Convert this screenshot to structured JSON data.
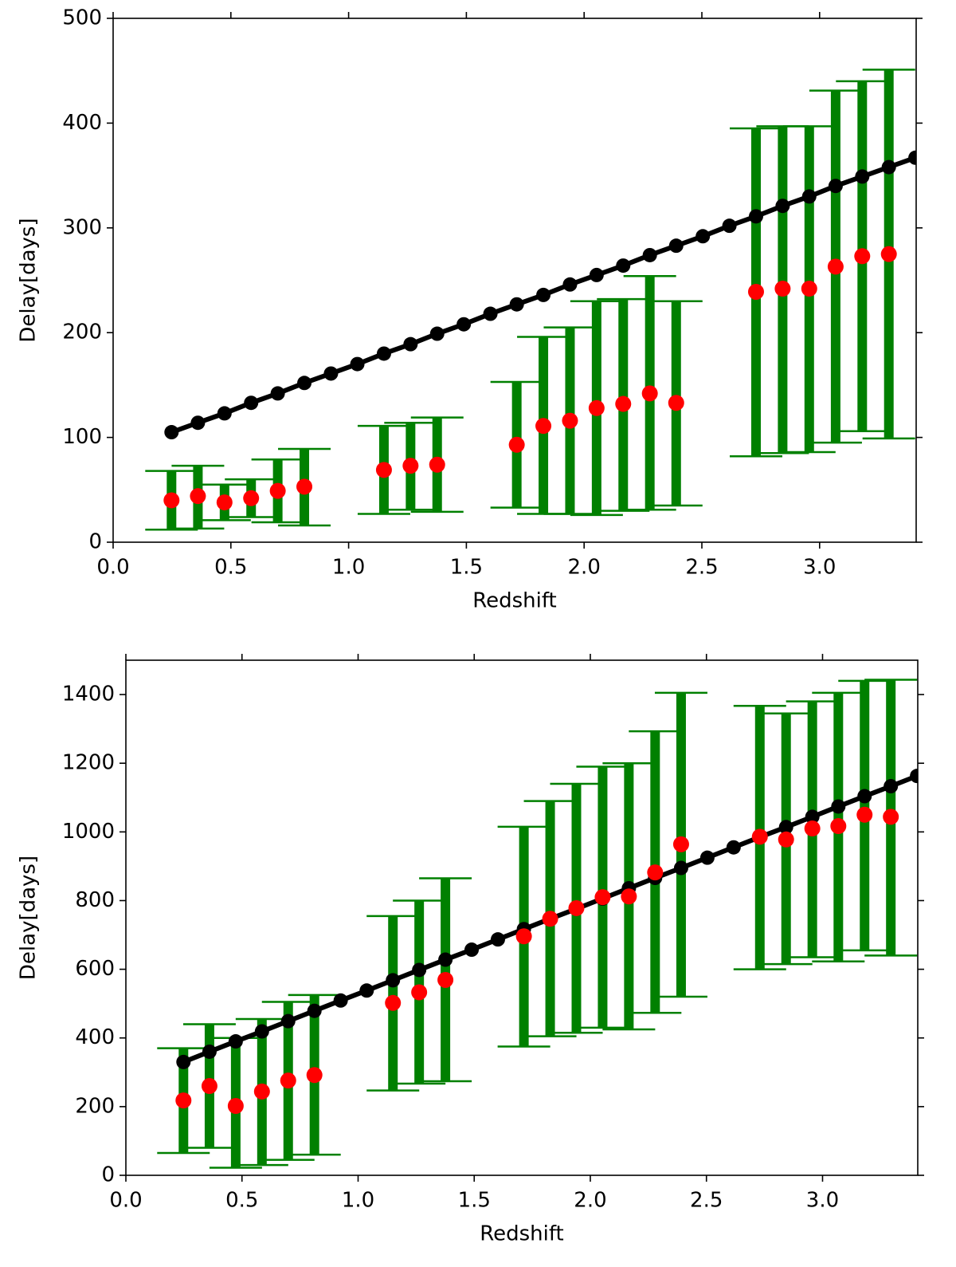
{
  "chart_data": [
    {
      "type": "errorbar",
      "xlabel": "Redshift",
      "ylabel": "Delay[days]",
      "xlim": [
        0,
        3.41
      ],
      "ylim": [
        0,
        500
      ],
      "xticks": [
        {
          "value": 0,
          "label": "0.0"
        },
        {
          "value": 0.5,
          "label": "0.5"
        },
        {
          "value": 1,
          "label": "1.0"
        },
        {
          "value": 1.5,
          "label": "1.5"
        },
        {
          "value": 2,
          "label": "2.0"
        },
        {
          "value": 2.5,
          "label": "2.5"
        },
        {
          "value": 3,
          "label": "3.0"
        }
      ],
      "yticks": [
        0,
        100,
        200,
        300,
        400,
        500
      ],
      "line": {
        "color": "#000000",
        "x": [
          0.248,
          0.36,
          0.473,
          0.586,
          0.699,
          0.812,
          0.925,
          1.037,
          1.15,
          1.263,
          1.376,
          1.489,
          1.602,
          1.714,
          1.827,
          1.94,
          2.053,
          2.166,
          2.279,
          2.391,
          2.504,
          2.617,
          2.73,
          2.843,
          2.956,
          3.068,
          3.181,
          3.294,
          3.407
        ],
        "values": [
          105,
          114,
          123,
          133,
          142,
          152,
          161,
          170,
          180,
          189,
          199,
          208,
          218,
          227,
          236,
          246,
          255,
          264,
          274,
          283,
          292,
          302,
          311,
          321,
          330,
          340,
          349,
          358,
          367
        ]
      },
      "points": {
        "color": "#ff0000",
        "error_color": "#008000",
        "x": [
          0.248,
          0.36,
          0.473,
          0.586,
          0.699,
          0.812,
          1.15,
          1.263,
          1.376,
          1.714,
          1.827,
          1.94,
          2.053,
          2.166,
          2.279,
          2.391,
          2.73,
          2.843,
          2.956,
          3.068,
          3.181,
          3.294
        ],
        "values": [
          40,
          44,
          38,
          42,
          49,
          53,
          69,
          73,
          74,
          93,
          111,
          116,
          128,
          132,
          142,
          133,
          239,
          242,
          242,
          263,
          273,
          275
        ],
        "lower": [
          12,
          13,
          21,
          24,
          19,
          16,
          27,
          31,
          29,
          33,
          27,
          27,
          26,
          30,
          31,
          35,
          82,
          85,
          86,
          95,
          106,
          99
        ],
        "upper": [
          68,
          73,
          55,
          60,
          79,
          89,
          111,
          114,
          119,
          153,
          196,
          205,
          230,
          232,
          254,
          230,
          395,
          397,
          397,
          431,
          440,
          451
        ]
      }
    },
    {
      "type": "errorbar",
      "xlabel": "Redshift",
      "ylabel": "Delay[days]",
      "xlim": [
        0,
        3.41
      ],
      "ylim": [
        0,
        1500
      ],
      "xticks": [
        {
          "value": 0,
          "label": "0.0"
        },
        {
          "value": 0.5,
          "label": "0.5"
        },
        {
          "value": 1,
          "label": "1.0"
        },
        {
          "value": 1.5,
          "label": "1.5"
        },
        {
          "value": 2,
          "label": "2.0"
        },
        {
          "value": 2.5,
          "label": "2.5"
        },
        {
          "value": 3,
          "label": "3.0"
        }
      ],
      "yticks": [
        0,
        200,
        400,
        600,
        800,
        1000,
        1200,
        1400
      ],
      "line": {
        "color": "#000000",
        "x": [
          0.248,
          0.36,
          0.473,
          0.586,
          0.699,
          0.812,
          0.925,
          1.037,
          1.15,
          1.263,
          1.376,
          1.489,
          1.602,
          1.714,
          1.827,
          1.94,
          2.053,
          2.166,
          2.279,
          2.391,
          2.504,
          2.617,
          2.73,
          2.843,
          2.956,
          3.068,
          3.181,
          3.294,
          3.407
        ],
        "values": [
          330,
          360,
          390,
          419,
          449,
          479,
          509,
          538,
          568,
          598,
          628,
          657,
          687,
          717,
          747,
          776,
          806,
          836,
          866,
          895,
          925,
          955,
          985,
          1014,
          1044,
          1074,
          1104,
          1133,
          1163
        ]
      },
      "points": {
        "color": "#ff0000",
        "error_color": "#008000",
        "x": [
          0.248,
          0.36,
          0.473,
          0.586,
          0.699,
          0.812,
          1.15,
          1.263,
          1.376,
          1.714,
          1.827,
          1.94,
          2.053,
          2.166,
          2.279,
          2.391,
          2.73,
          2.843,
          2.956,
          3.068,
          3.181,
          3.294
        ],
        "values": [
          218,
          260,
          202,
          244,
          276,
          292,
          502,
          533,
          569,
          696,
          747,
          778,
          810,
          812,
          882,
          964,
          986,
          978,
          1010,
          1017,
          1050,
          1044
        ],
        "lower": [
          65,
          80,
          22,
          30,
          45,
          60,
          247,
          267,
          274,
          375,
          405,
          415,
          430,
          425,
          473,
          520,
          600,
          615,
          635,
          623,
          655,
          640
        ],
        "upper": [
          370,
          440,
          400,
          455,
          505,
          525,
          755,
          800,
          865,
          1015,
          1090,
          1140,
          1190,
          1200,
          1293,
          1405,
          1367,
          1345,
          1380,
          1405,
          1440,
          1443
        ]
      }
    }
  ]
}
